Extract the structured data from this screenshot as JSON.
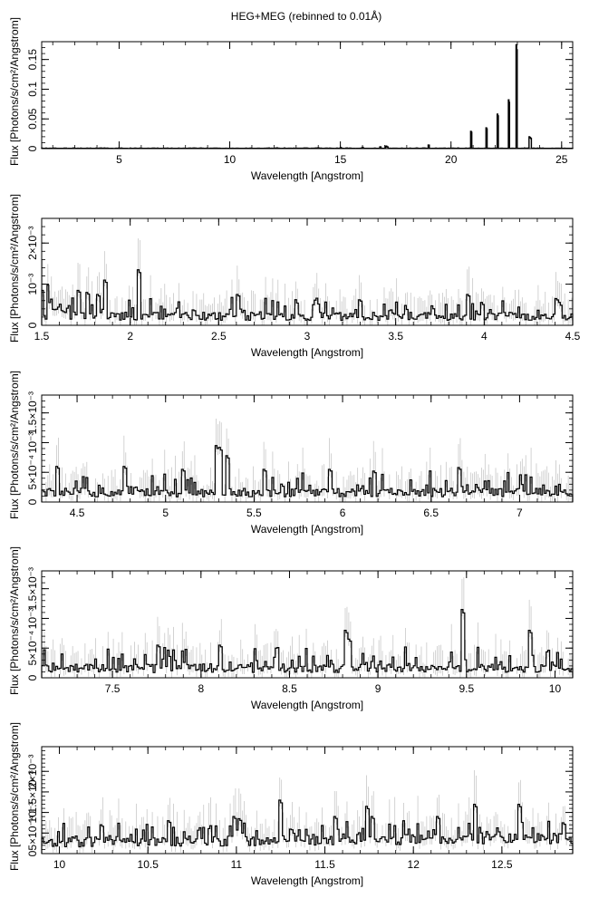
{
  "title": "HEG+MEG (rebinned to 0.01Å)",
  "chart_data": [
    {
      "type": "line",
      "style": "histogram-step",
      "xlabel": "Wavelength [Angstrom]",
      "ylabel": "Flux [Photons/s/cm²/Angstrom]",
      "xlim": [
        1.5,
        25.5
      ],
      "ylim": [
        0,
        0.18
      ],
      "xticks": [
        {
          "v": 5,
          "label": "5"
        },
        {
          "v": 10,
          "label": "10"
        },
        {
          "v": 15,
          "label": "15"
        },
        {
          "v": 20,
          "label": "20"
        },
        {
          "v": 25,
          "label": "25"
        }
      ],
      "yticks": [
        {
          "v": 0,
          "label": "0"
        },
        {
          "v": 0.05,
          "label": "0.05"
        },
        {
          "v": 0.1,
          "label": "0.1"
        },
        {
          "v": 0.15,
          "label": "0.15"
        }
      ],
      "continuum": 0.0004,
      "noise": 0.00025,
      "lines": [
        {
          "x": 12.13,
          "y": 0.0012
        },
        {
          "x": 13.45,
          "y": 0.001
        },
        {
          "x": 14.0,
          "y": 0.0012
        },
        {
          "x": 15.01,
          "y": 0.0018
        },
        {
          "x": 15.26,
          "y": 0.001
        },
        {
          "x": 16.0,
          "y": 0.0022
        },
        {
          "x": 16.78,
          "y": 0.003
        },
        {
          "x": 17.05,
          "y": 0.0042
        },
        {
          "x": 17.1,
          "y": 0.003
        },
        {
          "x": 18.97,
          "y": 0.006
        },
        {
          "x": 20.9,
          "y": 0.029
        },
        {
          "x": 21.6,
          "y": 0.035
        },
        {
          "x": 22.1,
          "y": 0.058
        },
        {
          "x": 22.6,
          "y": 0.082
        },
        {
          "x": 22.95,
          "y": 0.175
        },
        {
          "x": 23.55,
          "y": 0.02
        },
        {
          "x": 23.6,
          "y": 0.018
        }
      ]
    },
    {
      "type": "line",
      "style": "histogram-step",
      "xlabel": "Wavelength [Angstrom]",
      "ylabel": "Flux [Photons/s/cm²/Angstrom]",
      "xlim": [
        1.5,
        4.5
      ],
      "ylim": [
        0,
        0.0026
      ],
      "xticks": [
        {
          "v": 1.5,
          "label": "1.5"
        },
        {
          "v": 2,
          "label": "2"
        },
        {
          "v": 2.5,
          "label": "2.5"
        },
        {
          "v": 3,
          "label": "3"
        },
        {
          "v": 3.5,
          "label": "3.5"
        },
        {
          "v": 4,
          "label": "4"
        },
        {
          "v": 4.5,
          "label": "4.5"
        }
      ],
      "yticks": [
        {
          "v": 0,
          "label": "0"
        },
        {
          "v": 0.001,
          "label": "10⁻³"
        },
        {
          "v": 0.002,
          "label": "2×10⁻³"
        }
      ],
      "continuum": 0.00022,
      "noise": 0.00022,
      "lines": [
        {
          "x": 1.71,
          "y": 0.00085
        },
        {
          "x": 1.75,
          "y": 0.0008
        },
        {
          "x": 1.81,
          "y": 0.00075
        },
        {
          "x": 1.85,
          "y": 0.0011
        },
        {
          "x": 2.05,
          "y": 0.00135
        },
        {
          "x": 2.6,
          "y": 0.00075
        },
        {
          "x": 3.3,
          "y": 0.00062
        },
        {
          "x": 3.9,
          "y": 0.00075
        },
        {
          "x": 4.4,
          "y": 0.00065
        }
      ]
    },
    {
      "type": "line",
      "style": "histogram-step",
      "xlabel": "Wavelength [Angstrom]",
      "ylabel": "Flux [Photons/s/cm²/Angstrom]",
      "xlim": [
        4.3,
        7.3
      ],
      "ylim": [
        0,
        0.0018
      ],
      "xticks": [
        {
          "v": 4.5,
          "label": "4.5"
        },
        {
          "v": 5,
          "label": "5"
        },
        {
          "v": 5.5,
          "label": "5.5"
        },
        {
          "v": 6,
          "label": "6"
        },
        {
          "v": 6.5,
          "label": "6.5"
        },
        {
          "v": 7,
          "label": "7"
        }
      ],
      "yticks": [
        {
          "v": 0,
          "label": "0"
        },
        {
          "v": 0.0005,
          "label": "5×10⁻⁴"
        },
        {
          "v": 0.001,
          "label": "10⁻³"
        },
        {
          "v": 0.0015,
          "label": "1.5×10⁻³"
        }
      ],
      "continuum": 0.00016,
      "noise": 0.00016,
      "lines": [
        {
          "x": 4.38,
          "y": 0.0006
        },
        {
          "x": 4.77,
          "y": 0.0006
        },
        {
          "x": 5.1,
          "y": 0.00055
        },
        {
          "x": 5.28,
          "y": 0.00095
        },
        {
          "x": 5.31,
          "y": 0.00092
        },
        {
          "x": 5.35,
          "y": 0.00078
        },
        {
          "x": 5.55,
          "y": 0.00055
        },
        {
          "x": 5.92,
          "y": 0.00055
        },
        {
          "x": 6.18,
          "y": 0.00052
        },
        {
          "x": 6.65,
          "y": 0.00058
        }
      ]
    },
    {
      "type": "line",
      "style": "histogram-step",
      "xlabel": "Wavelength [Angstrom]",
      "ylabel": "Flux [Photons/s/cm²/Angstrom]",
      "xlim": [
        7.1,
        10.1
      ],
      "ylim": [
        0,
        0.0018
      ],
      "xticks": [
        {
          "v": 7.5,
          "label": "7.5"
        },
        {
          "v": 8,
          "label": "8"
        },
        {
          "v": 8.5,
          "label": "8.5"
        },
        {
          "v": 9,
          "label": "9"
        },
        {
          "v": 9.5,
          "label": "9.5"
        },
        {
          "v": 10,
          "label": "10"
        }
      ],
      "yticks": [
        {
          "v": 0,
          "label": "0"
        },
        {
          "v": 0.0005,
          "label": "5×10⁻⁴"
        },
        {
          "v": 0.001,
          "label": "10⁻³"
        },
        {
          "v": 0.0015,
          "label": "1.5×10⁻³"
        }
      ],
      "continuum": 0.00016,
      "noise": 0.00016,
      "lines": [
        {
          "x": 7.75,
          "y": 0.00055
        },
        {
          "x": 8.1,
          "y": 0.00055
        },
        {
          "x": 8.42,
          "y": 0.0005
        },
        {
          "x": 8.81,
          "y": 0.0008
        },
        {
          "x": 8.83,
          "y": 0.00065
        },
        {
          "x": 9.47,
          "y": 0.00115
        },
        {
          "x": 9.85,
          "y": 0.0008
        }
      ]
    },
    {
      "type": "line",
      "style": "histogram-step",
      "xlabel": "Wavelength [Angstrom]",
      "ylabel": "Flux [Photons/s/cm²/Angstrom]",
      "xlim": [
        9.9,
        12.9
      ],
      "ylim": [
        0,
        0.0026
      ],
      "xticks": [
        {
          "v": 10,
          "label": "10"
        },
        {
          "v": 10.5,
          "label": "10.5"
        },
        {
          "v": 11,
          "label": "11"
        },
        {
          "v": 11.5,
          "label": "11.5"
        },
        {
          "v": 12,
          "label": "12"
        },
        {
          "v": 12.5,
          "label": "12.5"
        }
      ],
      "yticks": [
        {
          "v": 0,
          "label": "0"
        },
        {
          "v": 0.0005,
          "label": "5×10⁻⁴"
        },
        {
          "v": 0.001,
          "label": "10⁻³"
        },
        {
          "v": 0.0015,
          "label": "1.5×10⁻³"
        },
        {
          "v": 0.002,
          "label": "2×10⁻³"
        }
      ],
      "continuum": 0.00028,
      "noise": 0.00022,
      "lines": [
        {
          "x": 10.24,
          "y": 0.0007
        },
        {
          "x": 10.62,
          "y": 0.0008
        },
        {
          "x": 10.98,
          "y": 0.0009
        },
        {
          "x": 11.02,
          "y": 0.00085
        },
        {
          "x": 11.25,
          "y": 0.0013
        },
        {
          "x": 11.55,
          "y": 0.0009
        },
        {
          "x": 11.74,
          "y": 0.00115
        },
        {
          "x": 11.77,
          "y": 0.0009
        },
        {
          "x": 12.13,
          "y": 0.0009
        },
        {
          "x": 12.35,
          "y": 0.0012
        },
        {
          "x": 12.6,
          "y": 0.0012
        },
        {
          "x": 12.85,
          "y": 0.00075
        }
      ]
    }
  ]
}
